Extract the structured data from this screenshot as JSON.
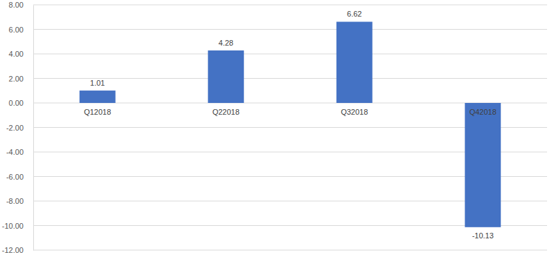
{
  "chart_data": {
    "type": "bar",
    "categories": [
      "Q12018",
      "Q22018",
      "Q32018",
      "Q42018"
    ],
    "values": [
      1.01,
      4.28,
      6.62,
      -10.13
    ],
    "color": "#4472c4",
    "ylim": [
      -12,
      8
    ],
    "yticks": [
      {
        "value": -12,
        "label": "-12.00"
      },
      {
        "value": -10,
        "label": "-10.00"
      },
      {
        "value": -8,
        "label": "-8.00"
      },
      {
        "value": -6,
        "label": "-6.00"
      },
      {
        "value": -4,
        "label": "-4.00"
      },
      {
        "value": -2,
        "label": "-2.00"
      },
      {
        "value": 0,
        "label": "0.00"
      },
      {
        "value": 2,
        "label": "2.00"
      },
      {
        "value": 4,
        "label": "4.00"
      },
      {
        "value": 6,
        "label": "6.00"
      },
      {
        "value": 8,
        "label": "8.00"
      }
    ],
    "grid": true,
    "data_labels": true
  }
}
